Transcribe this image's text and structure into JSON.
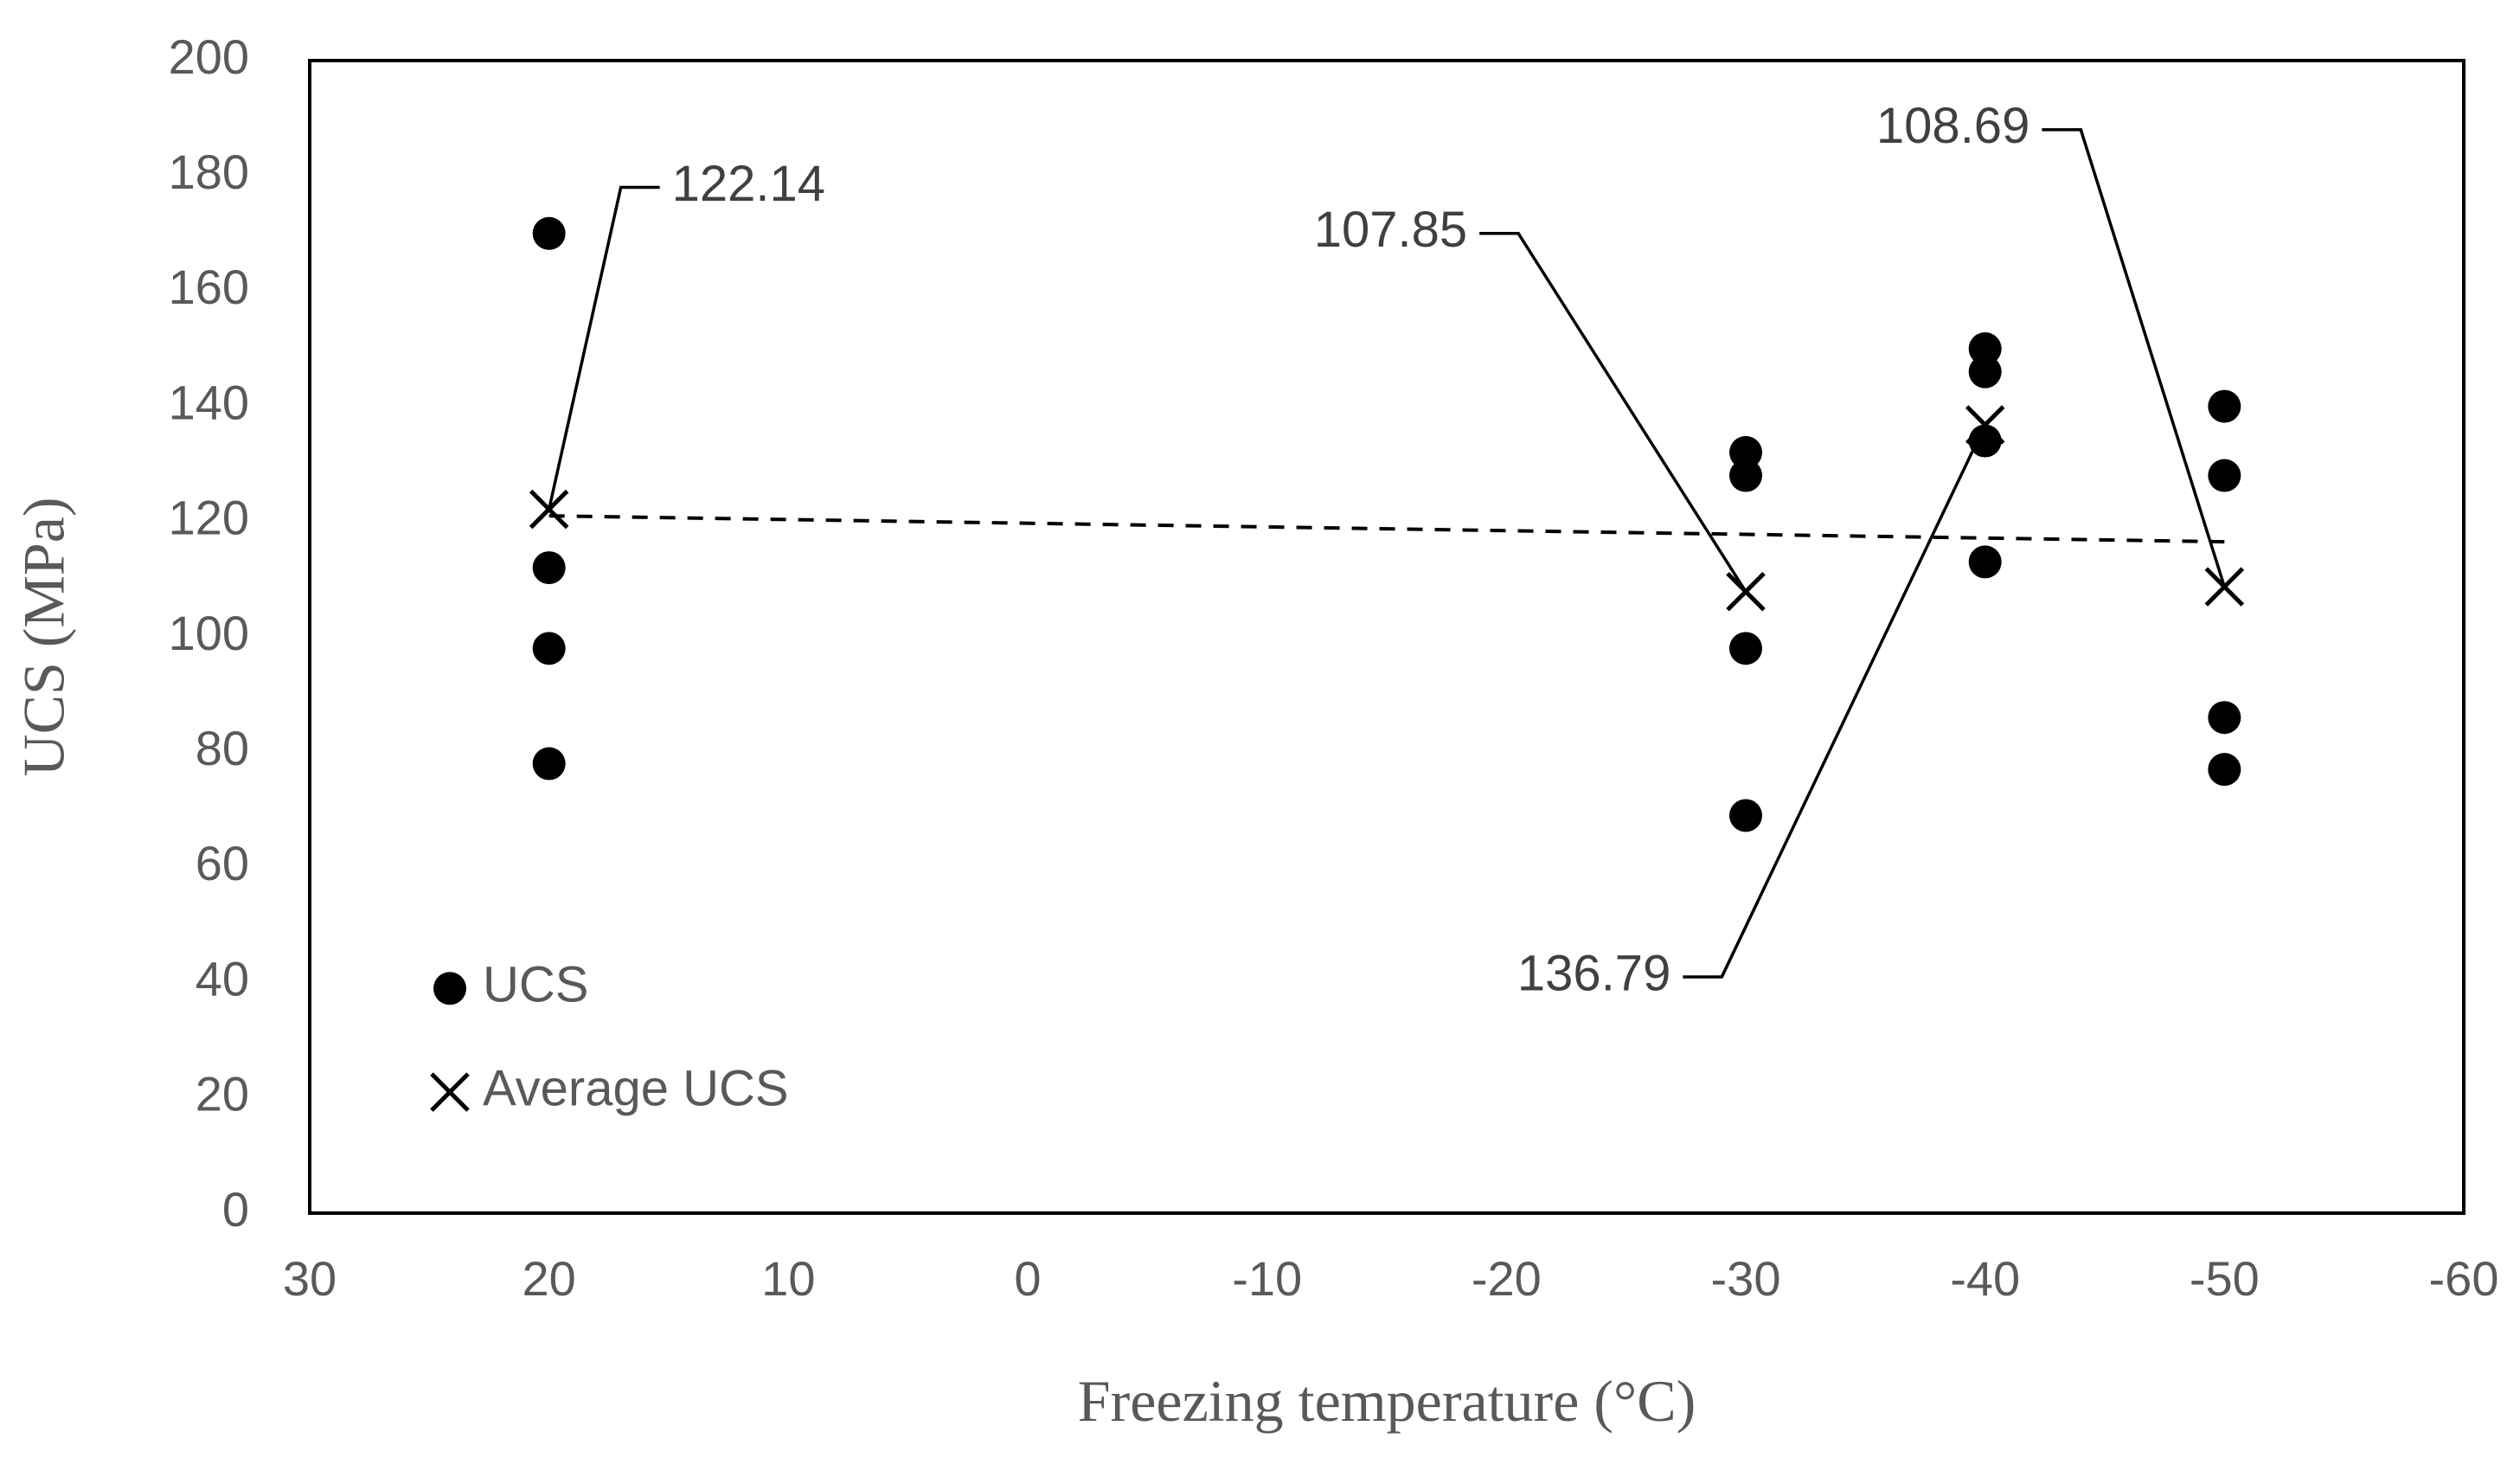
{
  "chart_data": {
    "type": "scatter",
    "title": "",
    "xlabel": "Freezing temperature (°C)",
    "ylabel": "UCS (MPa)",
    "xlim": [
      30,
      -60
    ],
    "ylim": [
      0,
      200
    ],
    "x_ticks": [
      30,
      20,
      10,
      0,
      -10,
      -20,
      -30,
      -40,
      -50,
      -60
    ],
    "y_ticks": [
      0,
      20,
      40,
      60,
      80,
      100,
      120,
      140,
      160,
      180,
      200
    ],
    "x_tick_labels": [
      "30",
      "20",
      "10",
      "0",
      "-10",
      "-20",
      "-30",
      "-40",
      "-50",
      "-60"
    ],
    "y_tick_labels": [
      "0",
      "20",
      "40",
      "60",
      "80",
      "100",
      "120",
      "140",
      "160",
      "180",
      "200"
    ],
    "grid": false,
    "legend": {
      "position": "bottom-left",
      "entries": [
        "UCS",
        "Average UCS"
      ]
    },
    "series": [
      {
        "name": "UCS",
        "marker": "circle",
        "color": "#000000",
        "points": [
          {
            "x": 20,
            "y": 170
          },
          {
            "x": 20,
            "y": 112
          },
          {
            "x": 20,
            "y": 98
          },
          {
            "x": 20,
            "y": 78
          },
          {
            "x": -30,
            "y": 132
          },
          {
            "x": -30,
            "y": 128
          },
          {
            "x": -30,
            "y": 98
          },
          {
            "x": -30,
            "y": 69
          },
          {
            "x": -40,
            "y": 150
          },
          {
            "x": -40,
            "y": 146
          },
          {
            "x": -40,
            "y": 134
          },
          {
            "x": -40,
            "y": 113
          },
          {
            "x": -50,
            "y": 140
          },
          {
            "x": -50,
            "y": 128
          },
          {
            "x": -50,
            "y": 86
          },
          {
            "x": -50,
            "y": 77
          }
        ]
      },
      {
        "name": "Average UCS",
        "marker": "x",
        "color": "#000000",
        "points": [
          {
            "x": 20,
            "y": 122.14
          },
          {
            "x": -30,
            "y": 107.85
          },
          {
            "x": -40,
            "y": 136.79
          },
          {
            "x": -50,
            "y": 108.69
          }
        ]
      }
    ],
    "trendline": {
      "style": "dashed",
      "color": "#000000",
      "from": {
        "x": 20,
        "y": 121
      },
      "to": {
        "x": -50,
        "y": 116.5
      }
    },
    "annotations": [
      {
        "text": "122.14",
        "target": {
          "x": 20,
          "y": 122.14
        },
        "elbow": {
          "x": 17,
          "y": 178
        },
        "anchor": "right"
      },
      {
        "text": "107.85",
        "target": {
          "x": -30,
          "y": 107.85
        },
        "elbow": {
          "x": -20.5,
          "y": 170
        },
        "anchor": "left"
      },
      {
        "text": "136.79",
        "target": {
          "x": -40,
          "y": 136.79
        },
        "elbow": {
          "x": -29,
          "y": 41
        },
        "anchor": "left"
      },
      {
        "text": "108.69",
        "target": {
          "x": -50,
          "y": 108.69
        },
        "elbow": {
          "x": -44,
          "y": 188
        },
        "anchor": "left"
      }
    ]
  }
}
